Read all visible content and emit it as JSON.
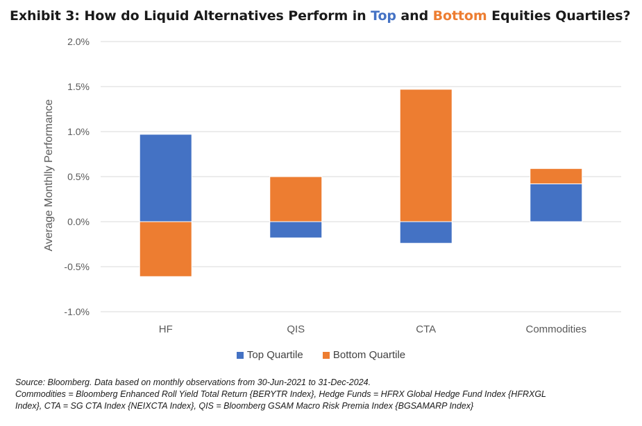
{
  "title": {
    "prefix": "Exhibit 3: How do Liquid Alternatives Perform in ",
    "top_word": "Top",
    "middle": " and ",
    "bottom_word": "Bottom",
    "suffix": " Equities Quartiles?"
  },
  "chart_data": {
    "type": "bar",
    "stacked": true,
    "categories": [
      "HF",
      "QIS",
      "CTA",
      "Commodities"
    ],
    "series": [
      {
        "name": "Top Quartile",
        "color": "#4472C4",
        "values": [
          0.97,
          -0.18,
          -0.24,
          0.42
        ]
      },
      {
        "name": "Bottom Quartile",
        "color": "#ED7D31",
        "values": [
          -0.61,
          0.5,
          1.47,
          0.17
        ]
      }
    ],
    "ylabel": "Average Monthlly Performance",
    "ylim": [
      -1.0,
      2.0
    ],
    "yticks": [
      -1.0,
      -0.5,
      0.0,
      0.5,
      1.0,
      1.5,
      2.0
    ],
    "ytick_labels": [
      "-1.0%",
      "-0.5%",
      "0.0%",
      "0.5%",
      "1.0%",
      "1.5%",
      "2.0%"
    ],
    "grid": true,
    "legend_position": "bottom"
  },
  "notes": [
    "Source: Bloomberg. Data based on monthly observations from 30-Jun-2021 to 31-Dec-2024.",
    "Commodities = Bloomberg Enhanced Roll Yield Total Return {BERYTR Index}, Hedge Funds = HFRX Global Hedge Fund Index {HFRXGL",
    "Index}, CTA = SG CTA Index {NEIXCTA Index}, QIS = Bloomberg GSAM Macro Risk Premia Index {BGSAMARP Index}"
  ]
}
